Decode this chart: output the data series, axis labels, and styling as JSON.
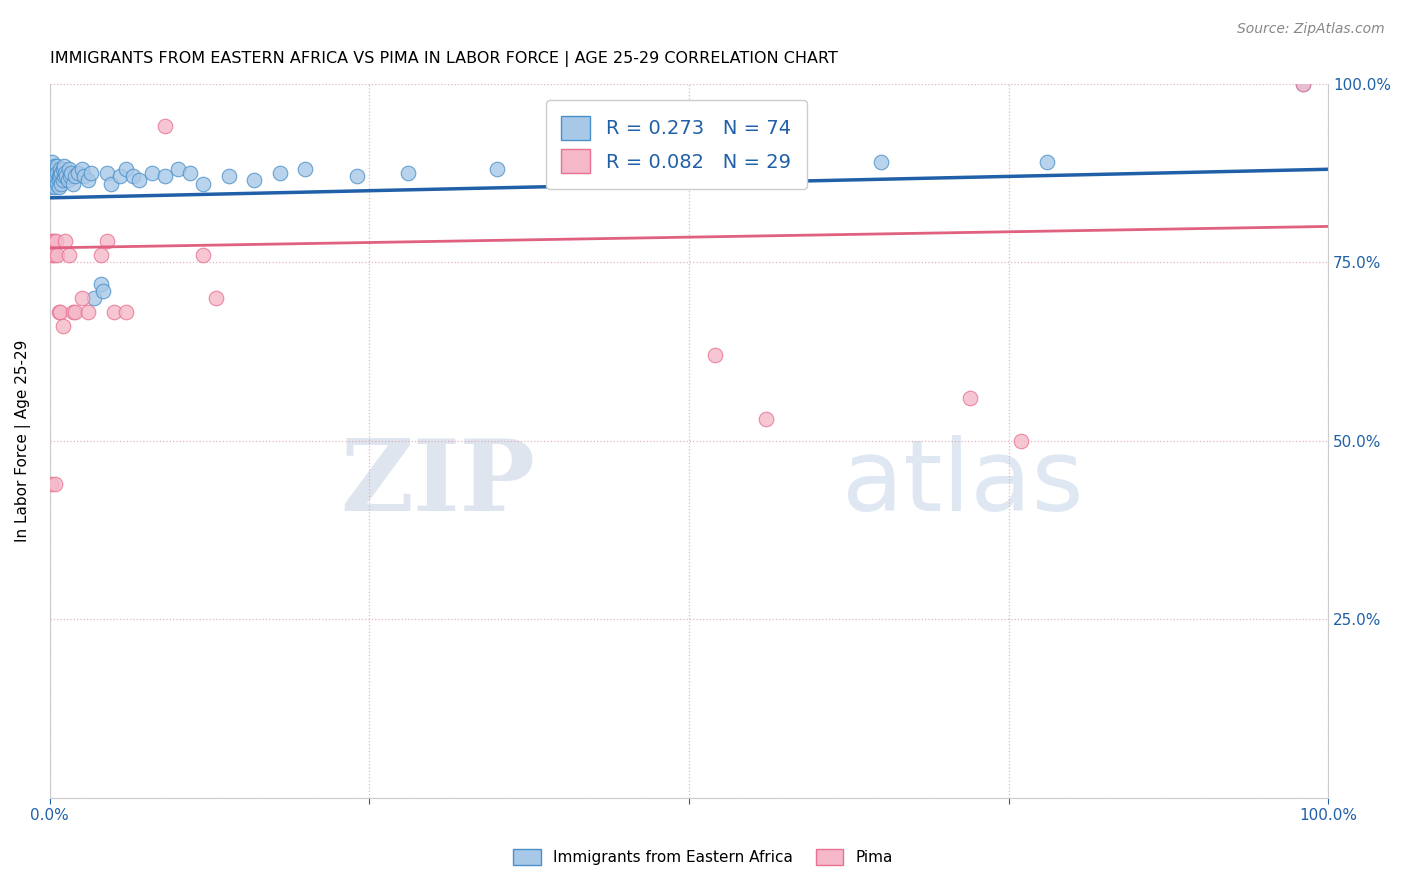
{
  "title": "IMMIGRANTS FROM EASTERN AFRICA VS PIMA IN LABOR FORCE | AGE 25-29 CORRELATION CHART",
  "source": "Source: ZipAtlas.com",
  "ylabel": "In Labor Force | Age 25-29",
  "blue_label": "Immigrants from Eastern Africa",
  "pink_label": "Pima",
  "blue_R": 0.273,
  "blue_N": 74,
  "pink_R": 0.082,
  "pink_N": 29,
  "blue_color": "#a8c8e8",
  "pink_color": "#f4b8c8",
  "blue_edge_color": "#4a90c8",
  "pink_edge_color": "#e87090",
  "blue_line_color": "#2060a8",
  "pink_line_color": "#e06080",
  "watermark_zip": "ZIP",
  "watermark_atlas": "atlas",
  "xlim": [
    0,
    1
  ],
  "ylim": [
    0,
    1
  ],
  "blue_x": [
    0.001,
    0.001,
    0.001,
    0.002,
    0.002,
    0.002,
    0.002,
    0.002,
    0.003,
    0.003,
    0.003,
    0.003,
    0.003,
    0.004,
    0.004,
    0.004,
    0.004,
    0.005,
    0.005,
    0.005,
    0.005,
    0.006,
    0.006,
    0.006,
    0.007,
    0.007,
    0.007,
    0.008,
    0.008,
    0.009,
    0.009,
    0.01,
    0.01,
    0.011,
    0.011,
    0.012,
    0.013,
    0.014,
    0.015,
    0.016,
    0.017,
    0.018,
    0.02,
    0.022,
    0.025,
    0.027,
    0.03,
    0.032,
    0.035,
    0.04,
    0.042,
    0.045,
    0.048,
    0.055,
    0.06,
    0.065,
    0.07,
    0.08,
    0.09,
    0.1,
    0.11,
    0.12,
    0.14,
    0.16,
    0.18,
    0.2,
    0.24,
    0.28,
    0.35,
    0.42,
    0.55,
    0.65,
    0.78,
    0.98
  ],
  "blue_y": [
    0.87,
    0.88,
    0.86,
    0.875,
    0.885,
    0.865,
    0.855,
    0.89,
    0.87,
    0.88,
    0.86,
    0.875,
    0.865,
    0.885,
    0.87,
    0.86,
    0.855,
    0.875,
    0.865,
    0.88,
    0.87,
    0.86,
    0.885,
    0.875,
    0.87,
    0.865,
    0.855,
    0.88,
    0.87,
    0.86,
    0.875,
    0.88,
    0.865,
    0.87,
    0.885,
    0.875,
    0.87,
    0.865,
    0.88,
    0.87,
    0.875,
    0.86,
    0.87,
    0.875,
    0.88,
    0.87,
    0.865,
    0.875,
    0.7,
    0.72,
    0.71,
    0.875,
    0.86,
    0.87,
    0.88,
    0.87,
    0.865,
    0.875,
    0.87,
    0.88,
    0.875,
    0.86,
    0.87,
    0.865,
    0.875,
    0.88,
    0.87,
    0.875,
    0.88,
    0.885,
    0.88,
    0.89,
    0.89,
    1.0
  ],
  "pink_x": [
    0.001,
    0.002,
    0.002,
    0.003,
    0.003,
    0.004,
    0.005,
    0.006,
    0.007,
    0.008,
    0.01,
    0.012,
    0.015,
    0.018,
    0.02,
    0.025,
    0.03,
    0.04,
    0.045,
    0.05,
    0.06,
    0.09,
    0.12,
    0.13,
    0.52,
    0.56,
    0.72,
    0.76,
    0.98
  ],
  "pink_y": [
    0.44,
    0.78,
    0.76,
    0.78,
    0.76,
    0.44,
    0.78,
    0.76,
    0.68,
    0.68,
    0.66,
    0.78,
    0.76,
    0.68,
    0.68,
    0.7,
    0.68,
    0.76,
    0.78,
    0.68,
    0.68,
    0.94,
    0.76,
    0.7,
    0.62,
    0.53,
    0.56,
    0.5,
    1.0
  ]
}
